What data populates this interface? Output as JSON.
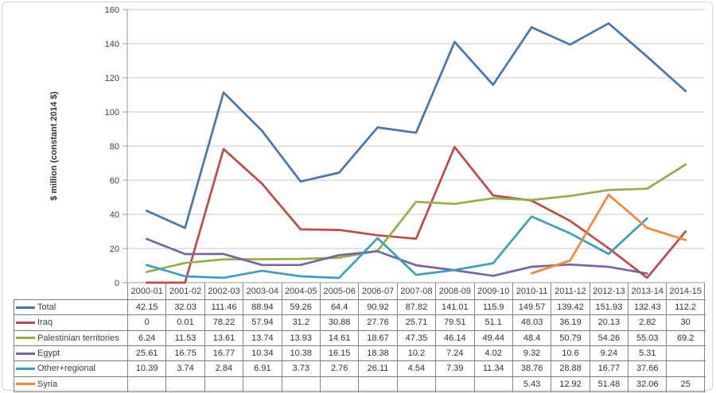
{
  "chart_data": {
    "type": "line",
    "title": "",
    "xlabel": "",
    "ylabel": "$ million (constant 2014 $)",
    "ylim": [
      0,
      160
    ],
    "yticks": [
      0,
      20,
      40,
      60,
      80,
      100,
      120,
      140,
      160
    ],
    "grid": true,
    "legend_position": "left-of-data-table",
    "categories": [
      "2000-01",
      "2001-02",
      "2002-03",
      "2003-04",
      "2004-05",
      "2005-06",
      "2006-07",
      "2007-08",
      "2008-09",
      "2009-10",
      "2010-11",
      "2011-12",
      "2012-13",
      "2013-14",
      "2014-15"
    ],
    "series": [
      {
        "name": "Total",
        "color": "#4676B6",
        "values": [
          42.15,
          32.03,
          111.46,
          88.94,
          59.26,
          64.4,
          90.92,
          87.82,
          141.01,
          115.9,
          149.57,
          139.42,
          151.93,
          132.43,
          112.2
        ]
      },
      {
        "name": "Iraq",
        "color": "#BE4B48",
        "values": [
          0,
          0.01,
          78.22,
          57.94,
          31.2,
          30.88,
          27.76,
          25.71,
          79.51,
          51.1,
          48.03,
          36.19,
          20.13,
          2.82,
          30
        ]
      },
      {
        "name": "Palestinian territories",
        "color": "#93AF46",
        "values": [
          6.24,
          11.53,
          13.61,
          13.74,
          13.93,
          14.61,
          18.67,
          47.35,
          46.14,
          49.44,
          48.4,
          50.79,
          54.26,
          55.03,
          69.2
        ]
      },
      {
        "name": "Egypt",
        "color": "#7C62A0",
        "values": [
          25.61,
          16.75,
          16.77,
          10.34,
          10.38,
          16.15,
          18.38,
          10.2,
          7.24,
          4.02,
          9.32,
          10.6,
          9.24,
          5.31,
          null
        ]
      },
      {
        "name": "Other+regional",
        "color": "#3C9EC1",
        "values": [
          10.39,
          3.74,
          2.84,
          6.91,
          3.73,
          2.76,
          26.11,
          4.54,
          7.39,
          11.34,
          38.76,
          28.88,
          16.77,
          37.66,
          null
        ]
      },
      {
        "name": "Syria",
        "color": "#F0873C",
        "values": [
          null,
          null,
          null,
          null,
          null,
          null,
          null,
          null,
          null,
          null,
          5.43,
          12.92,
          51.48,
          32.06,
          25
        ]
      }
    ]
  },
  "style": {
    "gridline_color": "#C7C7C7",
    "axis_color": "#9B9B9B",
    "table_border_color": "#7D7D7D",
    "text_color": "#404040",
    "frame_border_color": "#D5D5D5",
    "background": "#FFFFFF"
  }
}
